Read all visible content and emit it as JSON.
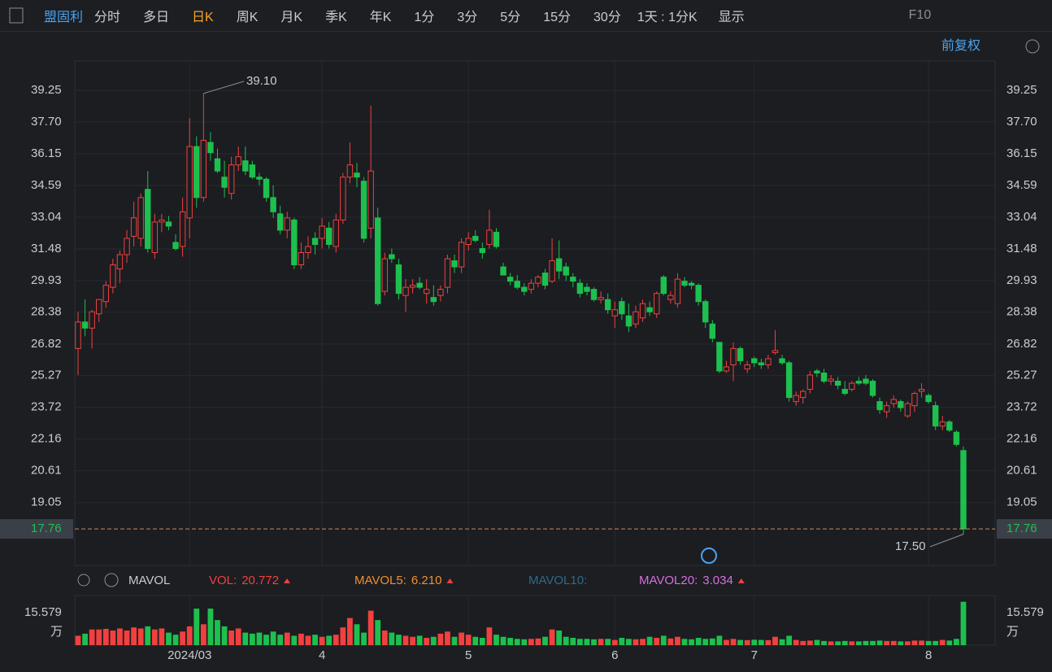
{
  "toolbar": {
    "stock": "盟固利",
    "tabs": [
      "分时",
      "多日",
      "日K",
      "周K",
      "月K",
      "季K",
      "年K",
      "1分",
      "3分",
      "5分",
      "15分",
      "30分"
    ],
    "period": "1天 : 1分K",
    "display": "显示",
    "f10": "F10",
    "adjust": "前复权"
  },
  "chart_data": [
    {
      "type": "candlestick",
      "up_color": "#f2403f",
      "down_color": "#1dc04e",
      "ylim": [
        15.97,
        40.69
      ],
      "yticks": [
        39.25,
        {
          "value": 37.7,
          "label": "37.70"
        },
        36.15,
        34.59,
        33.04,
        31.48,
        29.93,
        28.38,
        26.82,
        25.27,
        23.72,
        22.16,
        20.61,
        19.05
      ],
      "xticks": [
        {
          "value": 16,
          "label": "2024/03"
        },
        {
          "value": 35,
          "label": "4"
        },
        {
          "value": 56,
          "label": "5"
        },
        {
          "value": 77,
          "label": "6"
        },
        {
          "value": 97,
          "label": "7"
        },
        {
          "value": 122,
          "label": "8"
        }
      ],
      "last_price": 17.76,
      "high_label": {
        "value": 39.1,
        "label": "39.10"
      },
      "low_label": {
        "value": 17.5,
        "label": "17.50"
      },
      "candles": [
        [
          26.6,
          28.4,
          25.3,
          27.9
        ],
        [
          27.9,
          29.0,
          27.2,
          27.6
        ],
        [
          27.6,
          28.5,
          26.6,
          28.4
        ],
        [
          28.3,
          29.0,
          27.9,
          29.0
        ],
        [
          28.9,
          29.9,
          28.6,
          29.7
        ],
        [
          29.6,
          31.0,
          29.3,
          30.7
        ],
        [
          30.5,
          31.4,
          29.8,
          31.2
        ],
        [
          31.2,
          32.4,
          30.8,
          32.0
        ],
        [
          32.1,
          33.8,
          31.6,
          33.0
        ],
        [
          32.0,
          34.2,
          31.6,
          34.0
        ],
        [
          34.4,
          35.3,
          31.3,
          31.5
        ],
        [
          31.3,
          33.2,
          31.0,
          32.8
        ],
        [
          32.8,
          33.2,
          32.3,
          32.9
        ],
        [
          32.8,
          33.1,
          32.4,
          32.6
        ],
        [
          31.8,
          32.2,
          31.4,
          31.5
        ],
        [
          31.6,
          34.0,
          31.1,
          33.3
        ],
        [
          33.0,
          37.9,
          32.0,
          36.5
        ],
        [
          36.5,
          37.0,
          33.5,
          34.0
        ],
        [
          34.0,
          39.1,
          33.8,
          36.8
        ],
        [
          36.7,
          37.2,
          35.8,
          36.2
        ],
        [
          35.9,
          36.4,
          35.2,
          35.3
        ],
        [
          35.0,
          35.8,
          34.0,
          34.5
        ],
        [
          34.2,
          36.0,
          33.9,
          35.6
        ],
        [
          35.6,
          36.5,
          35.3,
          36.0
        ],
        [
          35.8,
          36.5,
          35.1,
          35.3
        ],
        [
          35.6,
          35.8,
          34.9,
          35.0
        ],
        [
          35.0,
          35.2,
          34.6,
          34.9
        ],
        [
          34.9,
          35.0,
          33.8,
          34.0
        ],
        [
          34.0,
          34.6,
          33.0,
          33.3
        ],
        [
          33.2,
          33.6,
          32.2,
          32.4
        ],
        [
          32.4,
          33.3,
          32.0,
          33.0
        ],
        [
          32.9,
          33.0,
          30.5,
          30.7
        ],
        [
          30.7,
          31.8,
          30.5,
          31.3
        ],
        [
          31.3,
          32.1,
          31.0,
          31.6
        ],
        [
          32.0,
          32.3,
          31.2,
          31.7
        ],
        [
          32.0,
          33.0,
          31.5,
          32.6
        ],
        [
          32.5,
          32.8,
          31.5,
          31.7
        ],
        [
          31.6,
          33.2,
          31.3,
          32.9
        ],
        [
          32.9,
          35.2,
          32.7,
          35.0
        ],
        [
          35.0,
          36.7,
          34.7,
          35.6
        ],
        [
          35.2,
          35.7,
          34.5,
          35.0
        ],
        [
          34.8,
          35.0,
          31.8,
          32.0
        ],
        [
          32.5,
          38.5,
          32.0,
          35.3
        ],
        [
          33.0,
          33.5,
          28.7,
          28.8
        ],
        [
          29.4,
          31.3,
          29.2,
          31.0
        ],
        [
          31.2,
          31.5,
          30.8,
          31.0
        ],
        [
          30.7,
          31.0,
          29.0,
          29.3
        ],
        [
          29.2,
          30.0,
          28.4,
          29.6
        ],
        [
          29.6,
          30.0,
          29.3,
          29.7
        ],
        [
          29.8,
          30.1,
          29.5,
          29.6
        ],
        [
          29.3,
          30.0,
          28.8,
          29.5
        ],
        [
          29.1,
          29.7,
          28.7,
          28.9
        ],
        [
          29.2,
          29.7,
          28.9,
          29.5
        ],
        [
          29.6,
          31.2,
          29.3,
          31.0
        ],
        [
          30.9,
          31.2,
          30.3,
          30.6
        ],
        [
          30.6,
          32.0,
          30.3,
          31.8
        ],
        [
          31.7,
          32.3,
          31.4,
          32.0
        ],
        [
          32.1,
          32.4,
          31.8,
          31.9
        ],
        [
          31.5,
          31.8,
          31.0,
          31.3
        ],
        [
          31.7,
          33.4,
          31.5,
          32.4
        ],
        [
          32.3,
          32.5,
          31.5,
          31.6
        ],
        [
          30.6,
          30.8,
          30.2,
          30.2
        ],
        [
          30.1,
          30.3,
          29.7,
          29.9
        ],
        [
          29.9,
          30.2,
          29.5,
          29.6
        ],
        [
          29.6,
          29.8,
          29.2,
          29.4
        ],
        [
          29.5,
          30.0,
          29.3,
          29.8
        ],
        [
          29.8,
          30.2,
          29.6,
          30.1
        ],
        [
          30.3,
          30.5,
          29.5,
          29.7
        ],
        [
          29.9,
          32.0,
          29.8,
          30.9
        ],
        [
          31.0,
          31.9,
          30.0,
          30.4
        ],
        [
          30.6,
          30.8,
          29.9,
          30.2
        ],
        [
          30.1,
          30.3,
          29.6,
          29.9
        ],
        [
          29.8,
          30.0,
          29.1,
          29.3
        ],
        [
          29.6,
          29.8,
          29.2,
          29.4
        ],
        [
          29.5,
          29.6,
          28.9,
          29.0
        ],
        [
          29.0,
          29.4,
          28.8,
          29.1
        ],
        [
          29.0,
          29.3,
          28.3,
          28.5
        ],
        [
          28.2,
          28.9,
          27.6,
          28.5
        ],
        [
          28.9,
          29.1,
          28.0,
          28.3
        ],
        [
          28.2,
          28.8,
          27.4,
          27.7
        ],
        [
          27.8,
          28.7,
          27.6,
          28.4
        ],
        [
          28.1,
          29.0,
          27.9,
          28.8
        ],
        [
          28.6,
          28.9,
          28.2,
          28.4
        ],
        [
          28.3,
          29.4,
          28.1,
          29.3
        ],
        [
          30.1,
          30.2,
          29.2,
          29.3
        ],
        [
          29.0,
          29.4,
          28.8,
          29.2
        ],
        [
          28.8,
          30.3,
          28.6,
          30.0
        ],
        [
          29.9,
          30.1,
          29.6,
          29.7
        ],
        [
          29.8,
          29.9,
          29.5,
          29.7
        ],
        [
          29.7,
          29.8,
          28.7,
          28.9
        ],
        [
          28.9,
          29.0,
          27.6,
          27.9
        ],
        [
          27.8,
          28.0,
          26.9,
          27.1
        ],
        [
          26.9,
          26.9,
          25.4,
          25.5
        ],
        [
          25.5,
          26.0,
          25.4,
          25.7
        ],
        [
          25.8,
          26.9,
          25.0,
          26.6
        ],
        [
          26.6,
          26.7,
          25.8,
          26.0
        ],
        [
          25.6,
          26.0,
          25.4,
          25.8
        ],
        [
          26.1,
          26.2,
          25.7,
          25.9
        ],
        [
          25.9,
          26.1,
          25.6,
          25.8
        ],
        [
          25.8,
          26.3,
          25.6,
          26.1
        ],
        [
          26.4,
          27.5,
          26.3,
          26.5
        ],
        [
          26.1,
          26.3,
          25.8,
          25.9
        ],
        [
          25.9,
          26.0,
          24.0,
          24.2
        ],
        [
          24.0,
          24.5,
          23.8,
          24.3
        ],
        [
          24.2,
          24.6,
          23.9,
          24.5
        ],
        [
          24.6,
          25.5,
          24.4,
          25.3
        ],
        [
          25.5,
          25.6,
          25.2,
          25.4
        ],
        [
          25.4,
          25.6,
          24.9,
          25.0
        ],
        [
          25.0,
          25.3,
          24.8,
          25.1
        ],
        [
          25.0,
          25.2,
          24.6,
          24.8
        ],
        [
          24.6,
          25.0,
          24.3,
          24.4
        ],
        [
          24.6,
          25.0,
          24.5,
          24.9
        ],
        [
          25.0,
          25.2,
          24.8,
          24.9
        ],
        [
          25.1,
          25.3,
          24.8,
          24.9
        ],
        [
          25.0,
          25.1,
          24.2,
          24.3
        ],
        [
          24.0,
          24.2,
          23.4,
          23.6
        ],
        [
          23.5,
          24.0,
          23.2,
          23.8
        ],
        [
          23.9,
          24.3,
          23.7,
          24.1
        ],
        [
          24.0,
          24.1,
          23.5,
          23.7
        ],
        [
          23.3,
          24.0,
          23.2,
          23.9
        ],
        [
          23.8,
          24.5,
          23.5,
          24.4
        ],
        [
          24.5,
          24.9,
          24.2,
          24.6
        ],
        [
          24.3,
          24.4,
          23.9,
          24.0
        ],
        [
          23.8,
          24.0,
          22.6,
          22.8
        ],
        [
          22.8,
          23.3,
          22.6,
          23.0
        ],
        [
          23.0,
          23.1,
          22.5,
          22.6
        ],
        [
          22.5,
          22.6,
          21.8,
          21.9
        ],
        [
          21.6,
          21.8,
          17.5,
          17.76
        ]
      ]
    },
    {
      "type": "bar",
      "title": "MAVOL",
      "unit": "万",
      "ylim": [
        0,
        23.76
      ],
      "yticks": [
        15.579
      ],
      "indicators": [
        {
          "name": "VOL:",
          "value": 20.772,
          "color": "#f2403f"
        },
        {
          "name": "MAVOL5:",
          "value": 6.21,
          "value_label": "6.210",
          "color": "#f0902e"
        },
        {
          "name": "MAVOL10:",
          "value": null,
          "color": "#2f6a86"
        },
        {
          "name": "MAVOL20:",
          "value": 3.034,
          "color": "#d86ee0"
        }
      ],
      "values": [
        4.5,
        5.5,
        7.5,
        7.5,
        7.8,
        7.0,
        8.0,
        7.0,
        8.5,
        8.0,
        9.0,
        7.5,
        8.0,
        6.0,
        5.0,
        6.5,
        9.0,
        17.5,
        10.0,
        17.5,
        12.0,
        9.0,
        7.0,
        8.0,
        6.0,
        5.5,
        6.0,
        5.0,
        6.5,
        5.0,
        6.0,
        4.5,
        5.5,
        4.5,
        5.0,
        4.0,
        4.5,
        5.0,
        8.5,
        13.0,
        10.0,
        6.0,
        16.5,
        12.0,
        7.0,
        6.0,
        5.0,
        4.5,
        4.0,
        4.5,
        3.5,
        4.0,
        5.5,
        6.5,
        4.0,
        6.0,
        5.0,
        4.0,
        3.5,
        8.5,
        5.0,
        4.0,
        3.5,
        3.0,
        2.8,
        3.0,
        3.2,
        4.0,
        7.5,
        7.0,
        4.0,
        3.5,
        3.0,
        3.0,
        2.8,
        3.0,
        3.0,
        2.5,
        3.5,
        3.0,
        2.8,
        3.0,
        4.0,
        3.5,
        4.5,
        3.2,
        4.0,
        3.0,
        2.8,
        3.5,
        3.0,
        3.2,
        4.5,
        2.5,
        3.0,
        2.5,
        2.4,
        2.6,
        2.5,
        2.4,
        4.0,
        2.8,
        4.5,
        2.5,
        2.0,
        2.2,
        2.5,
        2.0,
        1.8,
        1.8,
        2.0,
        1.8,
        1.8,
        2.0,
        2.0,
        2.2,
        2.0,
        2.0,
        1.8,
        1.8,
        2.2,
        2.2,
        2.0,
        2.0,
        2.5,
        2.2,
        3.0,
        20.772
      ]
    }
  ]
}
